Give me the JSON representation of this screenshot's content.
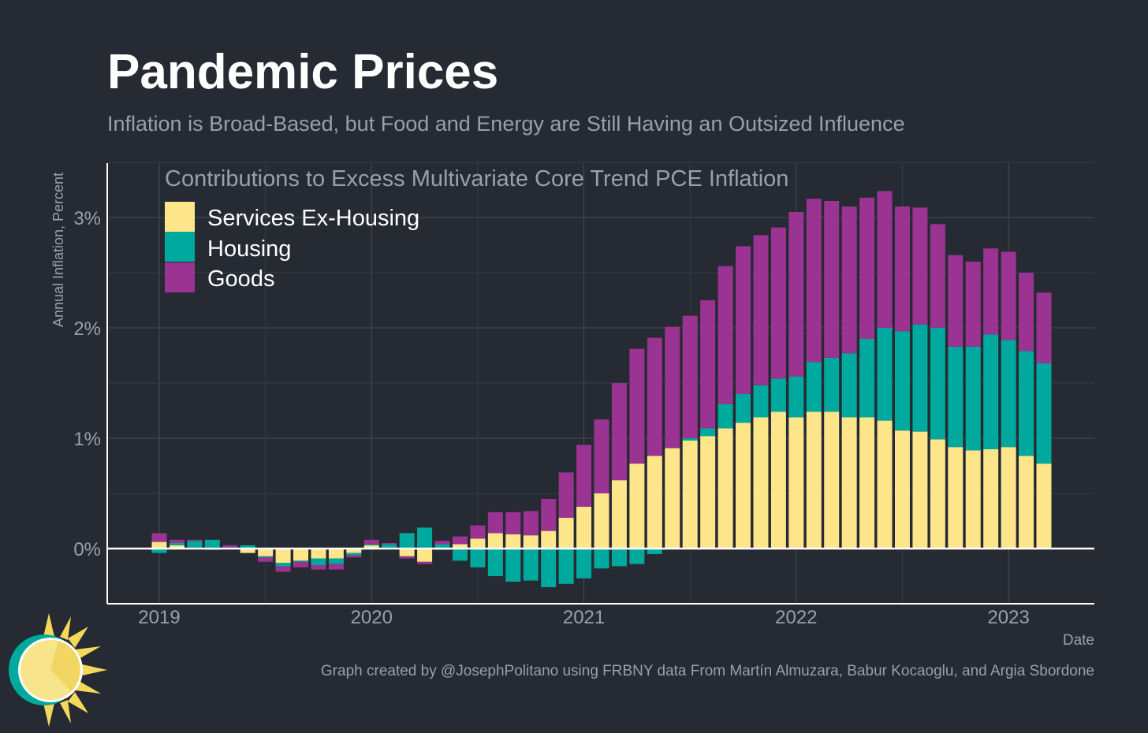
{
  "title": "Pandemic Prices",
  "subtitle": "Inflation is Broad-Based, but Food and Energy are Still Having an Outsized Influence",
  "credit": "Graph created by @JosephPolitano using FRBNY data From Martín Almuzara, Babur Kocaoglu, and Argia Sbordone",
  "colors": {
    "background": "#252a33",
    "services": "#fde68a",
    "housing": "#00a99d",
    "goods": "#9b3392"
  },
  "chart_data": {
    "type": "bar",
    "stacked": true,
    "title": "Contributions to Excess Multivariate Core Trend PCE Inflation",
    "xlabel": "Date",
    "ylabel": "Annual Inflation, Percent",
    "ylim": [
      -0.5,
      3.5
    ],
    "yticks": [
      0,
      1,
      2,
      3
    ],
    "ytick_labels": [
      "0%",
      "1%",
      "2%",
      "3%"
    ],
    "xtick_labels": [
      "2019",
      "2020",
      "2021",
      "2022",
      "2023"
    ],
    "grid": true,
    "legend_position": "top-left",
    "categories": [
      "2019-01",
      "2019-02",
      "2019-03",
      "2019-04",
      "2019-05",
      "2019-06",
      "2019-07",
      "2019-08",
      "2019-09",
      "2019-10",
      "2019-11",
      "2019-12",
      "2020-01",
      "2020-02",
      "2020-03",
      "2020-04",
      "2020-05",
      "2020-06",
      "2020-07",
      "2020-08",
      "2020-09",
      "2020-10",
      "2020-11",
      "2020-12",
      "2021-01",
      "2021-02",
      "2021-03",
      "2021-04",
      "2021-05",
      "2021-06",
      "2021-07",
      "2021-08",
      "2021-09",
      "2021-10",
      "2021-11",
      "2021-12",
      "2022-01",
      "2022-02",
      "2022-03",
      "2022-04",
      "2022-05",
      "2022-06",
      "2022-07",
      "2022-08",
      "2022-09",
      "2022-10",
      "2022-11",
      "2022-12",
      "2023-01",
      "2023-02",
      "2023-03"
    ],
    "series": [
      {
        "name": "Services Ex-Housing",
        "color": "#fde68a",
        "values": [
          0.06,
          0.03,
          0.0,
          -0.01,
          0.0,
          -0.04,
          -0.07,
          -0.13,
          -0.11,
          -0.09,
          -0.09,
          -0.04,
          0.03,
          0.0,
          -0.07,
          -0.12,
          -0.01,
          0.04,
          0.09,
          0.14,
          0.13,
          0.12,
          0.16,
          0.28,
          0.38,
          0.5,
          0.62,
          0.77,
          0.84,
          0.91,
          0.98,
          1.02,
          1.09,
          1.14,
          1.19,
          1.24,
          1.19,
          1.24,
          1.24,
          1.19,
          1.19,
          1.16,
          1.07,
          1.06,
          0.99,
          0.92,
          0.89,
          0.9,
          0.92,
          0.84,
          0.77
        ]
      },
      {
        "name": "Housing",
        "color": "#00a99d",
        "values": [
          -0.04,
          0.02,
          0.07,
          0.08,
          0.01,
          0.03,
          -0.01,
          -0.03,
          -0.01,
          -0.06,
          -0.05,
          -0.02,
          0.01,
          0.04,
          0.14,
          0.19,
          0.04,
          -0.11,
          -0.17,
          -0.25,
          -0.3,
          -0.29,
          -0.35,
          -0.32,
          -0.27,
          -0.18,
          -0.16,
          -0.14,
          -0.05,
          0.0,
          0.02,
          0.07,
          0.22,
          0.26,
          0.29,
          0.3,
          0.37,
          0.45,
          0.49,
          0.58,
          0.71,
          0.84,
          0.9,
          0.97,
          1.01,
          0.91,
          0.94,
          1.04,
          0.97,
          0.95,
          0.91
        ]
      },
      {
        "name": "Goods",
        "color": "#9b3392",
        "values": [
          0.08,
          0.03,
          0.01,
          0.0,
          0.02,
          0.0,
          -0.04,
          -0.05,
          -0.05,
          -0.04,
          -0.05,
          -0.02,
          0.04,
          0.01,
          -0.02,
          -0.02,
          0.03,
          0.07,
          0.12,
          0.19,
          0.2,
          0.22,
          0.29,
          0.41,
          0.56,
          0.67,
          0.88,
          1.04,
          1.07,
          1.1,
          1.11,
          1.16,
          1.25,
          1.34,
          1.36,
          1.37,
          1.49,
          1.48,
          1.42,
          1.33,
          1.28,
          1.24,
          1.13,
          1.06,
          0.94,
          0.83,
          0.77,
          0.78,
          0.8,
          0.71,
          0.64
        ]
      }
    ]
  }
}
